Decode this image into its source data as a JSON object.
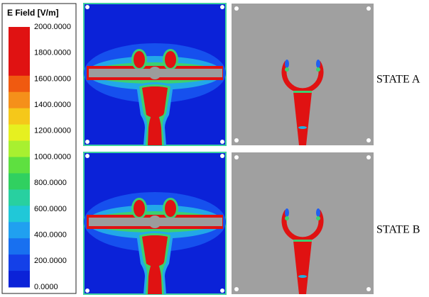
{
  "legend": {
    "title": "E Field [V/m]",
    "labels": [
      "2000.0000",
      "1800.0000",
      "1600.0000",
      "1400.0000",
      "1200.0000",
      "1000.0000",
      "800.0000",
      "600.0000",
      "400.0000",
      "200.0000",
      "0.0000"
    ]
  },
  "panels": [
    {
      "label": "STATE A"
    },
    {
      "label": "STATE B"
    }
  ]
}
